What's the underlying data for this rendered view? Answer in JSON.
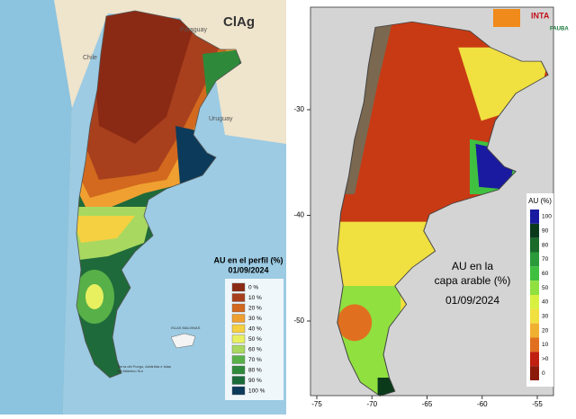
{
  "left": {
    "logo": "ClAg",
    "countries": [
      "Paraguay",
      "Chile",
      "Uruguay"
    ],
    "islands": "ISLAS MALVINAS",
    "tdf": "Tierra del Fuego, Antártida e Islas del Atlántico Sur",
    "legend": {
      "title": "AU en el perfil (%)",
      "date": "01/09/2024",
      "labels": [
        "0 %",
        "10 %",
        "20 %",
        "30 %",
        "40 %",
        "50 %",
        "60 %",
        "70 %",
        "80 %",
        "90 %",
        "100 %"
      ],
      "colors": [
        "#8b2a14",
        "#a8401e",
        "#d2691e",
        "#f0a030",
        "#f5d040",
        "#e8f060",
        "#a8d860",
        "#58b048",
        "#2e8a3a",
        "#1a6a3a",
        "#0c3a5a"
      ]
    }
  },
  "right": {
    "logos": [
      "INTA",
      "FAUBA"
    ],
    "xticks": [
      -75,
      -70,
      -65,
      -60,
      -55
    ],
    "yticks": [
      -30,
      -40,
      -50
    ],
    "title": [
      "AU en la",
      "capa arable (%)"
    ],
    "date": "01/09/2024",
    "colorbar": {
      "title": "AU (%)",
      "labels": [
        "100",
        "90",
        "80",
        "70",
        "60",
        "50",
        "40",
        "30",
        "20",
        "10",
        ">0",
        "0"
      ],
      "colors": [
        "#1a1aa0",
        "#0a3a1a",
        "#1a6a2a",
        "#2a9a3a",
        "#40c040",
        "#90e040",
        "#d8f040",
        "#f0e040",
        "#f0b030",
        "#e07020",
        "#c02010",
        "#8b1a0a"
      ]
    }
  }
}
